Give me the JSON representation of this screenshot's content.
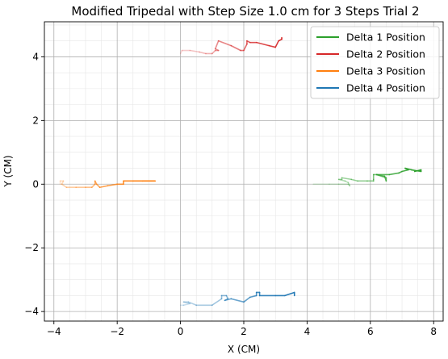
{
  "chart_data": {
    "type": "line",
    "title": "Modified Tripedal with Step Size 1.0 cm for 3 Steps Trial 2",
    "xlabel": "X (CM)",
    "ylabel": "Y (CM)",
    "xlim": [
      -4.3,
      8.3
    ],
    "ylim": [
      -4.3,
      5.1
    ],
    "xticks": [
      -4,
      -2,
      0,
      2,
      4,
      6,
      8
    ],
    "yticks": [
      -4,
      -2,
      0,
      2,
      4
    ],
    "xtick_labels": [
      "−4",
      "−2",
      "0",
      "2",
      "4",
      "6",
      "8"
    ],
    "ytick_labels": [
      "−4",
      "−2",
      "0",
      "2",
      "4"
    ],
    "grid": true,
    "minor_grid": true,
    "legend_position": "top-right",
    "series": [
      {
        "name": "Delta 1 Position",
        "color": "#2ca02c",
        "points": [
          [
            4.2,
            0.0
          ],
          [
            4.7,
            0.0
          ],
          [
            5.0,
            0.0
          ],
          [
            5.3,
            0.0
          ],
          [
            5.35,
            -0.05
          ],
          [
            5.3,
            0.05
          ],
          [
            5.2,
            0.1
          ],
          [
            5.0,
            0.15
          ],
          [
            5.1,
            0.15
          ],
          [
            5.1,
            0.2
          ],
          [
            5.4,
            0.15
          ],
          [
            5.6,
            0.1
          ],
          [
            5.9,
            0.1
          ],
          [
            6.1,
            0.1
          ],
          [
            6.1,
            0.15
          ],
          [
            6.1,
            0.3
          ],
          [
            6.2,
            0.3
          ],
          [
            6.5,
            0.2
          ],
          [
            6.5,
            0.1
          ],
          [
            6.45,
            0.25
          ],
          [
            6.2,
            0.3
          ],
          [
            6.6,
            0.3
          ],
          [
            6.9,
            0.35
          ],
          [
            7.0,
            0.4
          ],
          [
            7.2,
            0.45
          ],
          [
            7.1,
            0.5
          ],
          [
            7.3,
            0.45
          ],
          [
            7.6,
            0.4
          ],
          [
            7.6,
            0.45
          ],
          [
            7.4,
            0.4
          ]
        ]
      },
      {
        "name": "Delta 2 Position",
        "color": "#d62728",
        "points": [
          [
            0.0,
            4.1
          ],
          [
            0.05,
            4.2
          ],
          [
            0.3,
            4.2
          ],
          [
            0.6,
            4.15
          ],
          [
            0.8,
            4.1
          ],
          [
            1.0,
            4.1
          ],
          [
            1.1,
            4.2
          ],
          [
            1.2,
            4.2
          ],
          [
            1.1,
            4.25
          ],
          [
            1.2,
            4.5
          ],
          [
            1.6,
            4.35
          ],
          [
            1.9,
            4.2
          ],
          [
            2.0,
            4.2
          ],
          [
            2.1,
            4.4
          ],
          [
            2.1,
            4.5
          ],
          [
            2.2,
            4.45
          ],
          [
            2.4,
            4.45
          ],
          [
            2.8,
            4.35
          ],
          [
            3.0,
            4.3
          ],
          [
            3.1,
            4.5
          ],
          [
            3.2,
            4.55
          ],
          [
            3.2,
            4.6
          ]
        ]
      },
      {
        "name": "Delta 3 Position",
        "color": "#ff7f0e",
        "points": [
          [
            -3.8,
            0.0
          ],
          [
            -3.8,
            0.1
          ],
          [
            -3.7,
            0.1
          ],
          [
            -3.75,
            0.0
          ],
          [
            -3.6,
            -0.1
          ],
          [
            -3.3,
            -0.1
          ],
          [
            -3.0,
            -0.1
          ],
          [
            -2.8,
            -0.1
          ],
          [
            -2.7,
            0.0
          ],
          [
            -2.7,
            0.1
          ],
          [
            -2.65,
            0.0
          ],
          [
            -2.55,
            -0.1
          ],
          [
            -2.3,
            -0.05
          ],
          [
            -2.0,
            0.0
          ],
          [
            -1.8,
            0.0
          ],
          [
            -1.8,
            0.1
          ],
          [
            -1.5,
            0.1
          ],
          [
            -1.2,
            0.1
          ],
          [
            -0.8,
            0.1
          ]
        ]
      },
      {
        "name": "Delta 4 Position",
        "color": "#1f77b4",
        "points": [
          [
            0.0,
            -3.8
          ],
          [
            0.1,
            -3.8
          ],
          [
            0.3,
            -3.75
          ],
          [
            0.1,
            -3.7
          ],
          [
            0.25,
            -3.7
          ],
          [
            0.5,
            -3.8
          ],
          [
            1.0,
            -3.8
          ],
          [
            1.3,
            -3.6
          ],
          [
            1.3,
            -3.5
          ],
          [
            1.45,
            -3.5
          ],
          [
            1.5,
            -3.6
          ],
          [
            1.4,
            -3.65
          ],
          [
            1.6,
            -3.6
          ],
          [
            2.0,
            -3.7
          ],
          [
            2.2,
            -3.55
          ],
          [
            2.4,
            -3.5
          ],
          [
            2.4,
            -3.4
          ],
          [
            2.5,
            -3.4
          ],
          [
            2.5,
            -3.5
          ],
          [
            3.0,
            -3.5
          ],
          [
            3.3,
            -3.5
          ],
          [
            3.6,
            -3.4
          ],
          [
            3.6,
            -3.5
          ]
        ]
      }
    ]
  }
}
